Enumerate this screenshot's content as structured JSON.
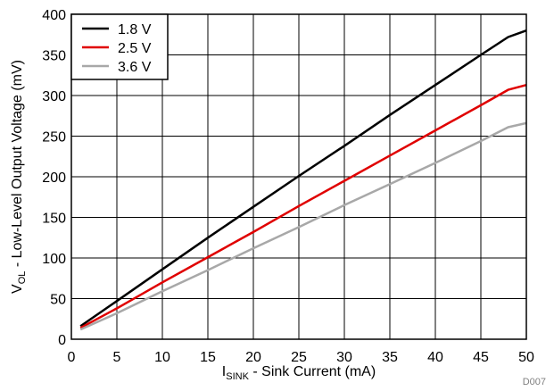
{
  "chart_data": {
    "type": "line",
    "xlabel_main": "I",
    "xlabel_sub": "SINK",
    "xlabel_rest": " - Sink Current (mA)",
    "ylabel_main": "V",
    "ylabel_sub": "OL",
    "ylabel_rest": " - Low-Level Output Voltage (mV)",
    "xlim": [
      0,
      50
    ],
    "ylim": [
      0,
      400
    ],
    "xticks": [
      0,
      5,
      10,
      15,
      20,
      25,
      30,
      35,
      40,
      45,
      50
    ],
    "yticks": [
      0,
      50,
      100,
      150,
      200,
      250,
      300,
      350,
      400
    ],
    "grid": true,
    "legend_position": "top-left",
    "series": [
      {
        "name": "1.8 V",
        "color": "#000000",
        "x": [
          1,
          5,
          10,
          15,
          20,
          25,
          30,
          35,
          40,
          45,
          48,
          50
        ],
        "y": [
          16,
          47,
          86,
          125,
          163,
          201,
          238,
          276,
          313,
          350,
          372,
          380
        ]
      },
      {
        "name": "2.5 V",
        "color": "#e00000",
        "x": [
          1,
          5,
          10,
          15,
          20,
          25,
          30,
          35,
          40,
          45,
          48,
          50
        ],
        "y": [
          14,
          38,
          70,
          101,
          132,
          164,
          195,
          226,
          257,
          288,
          307,
          313
        ]
      },
      {
        "name": "3.6 V",
        "color": "#a8a8a8",
        "x": [
          1,
          5,
          10,
          15,
          20,
          25,
          30,
          35,
          40,
          45,
          48,
          50
        ],
        "y": [
          12,
          32,
          59,
          85,
          112,
          138,
          165,
          191,
          217,
          244,
          261,
          266
        ]
      }
    ],
    "footnote": "D007"
  }
}
